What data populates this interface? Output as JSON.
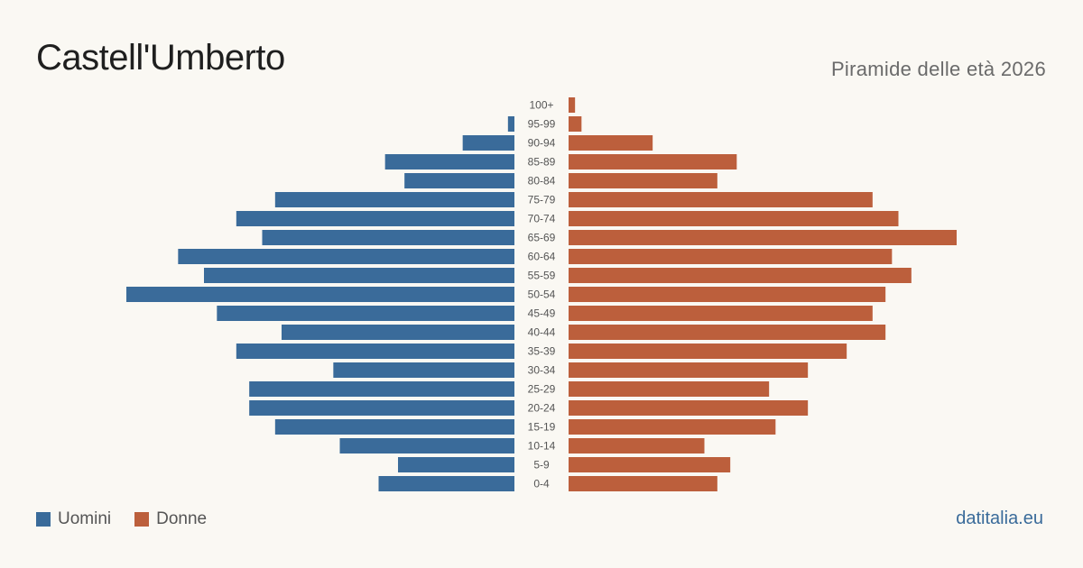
{
  "title": "Castell'Umberto",
  "subtitle": "Piramide delle età 2026",
  "source": "datitalia.eu",
  "legend": {
    "male_label": "Uomini",
    "female_label": "Donne"
  },
  "colors": {
    "male": "#3a6b9a",
    "female": "#bc5f3c",
    "background": "#faf8f3"
  },
  "chart_data": {
    "type": "bar",
    "orientation": "horizontal",
    "categories": [
      "100+",
      "95-99",
      "90-94",
      "85-89",
      "80-84",
      "75-79",
      "70-74",
      "65-69",
      "60-64",
      "55-59",
      "50-54",
      "45-49",
      "40-44",
      "35-39",
      "30-34",
      "25-29",
      "20-24",
      "15-19",
      "10-14",
      "5-9",
      "0-4"
    ],
    "series": [
      {
        "name": "Uomini",
        "values": [
          0,
          1,
          8,
          20,
          17,
          37,
          43,
          39,
          52,
          48,
          60,
          46,
          36,
          43,
          28,
          41,
          41,
          37,
          27,
          18,
          21
        ]
      },
      {
        "name": "Donne",
        "values": [
          1,
          2,
          13,
          26,
          23,
          47,
          51,
          60,
          50,
          53,
          49,
          47,
          49,
          43,
          37,
          31,
          37,
          32,
          21,
          25,
          23
        ]
      }
    ],
    "xlim": [
      0,
      60
    ],
    "grid": false,
    "legend_position": "bottom-left"
  }
}
